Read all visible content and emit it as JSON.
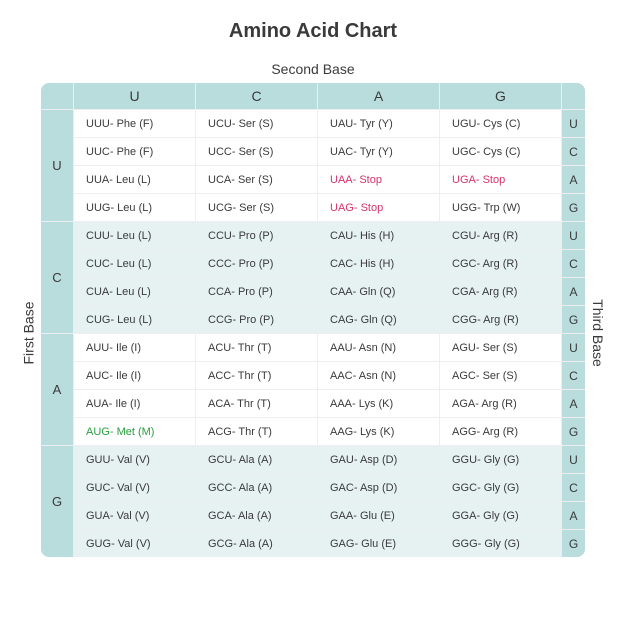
{
  "title": "Amino Acid Chart",
  "labels": {
    "first_base": "First Base",
    "second_base": "Second Base",
    "third_base": "Third Base"
  },
  "colors": {
    "header_bg": "#b9dcdc",
    "cell_bg_light": "#ffffff",
    "cell_bg_tint": "#e6f2f2",
    "text": "#3a3a3a",
    "stop": "#d6336c",
    "start": "#2a9d3f",
    "border": "#eeeeee"
  },
  "second_base_headers": [
    "U",
    "C",
    "A",
    "G"
  ],
  "first_base_headers": [
    "U",
    "C",
    "A",
    "G"
  ],
  "third_base_cycle": [
    "U",
    "C",
    "A",
    "G"
  ],
  "table": [
    [
      {
        "codon": "UUU",
        "rest": " - Phe (F)"
      },
      {
        "codon": "UCU",
        "rest": " - Ser (S)"
      },
      {
        "codon": "UAU",
        "rest": " - Tyr (Y)"
      },
      {
        "codon": "UGU",
        "rest": " - Cys (C)"
      }
    ],
    [
      {
        "codon": "UUC",
        "rest": " - Phe (F)"
      },
      {
        "codon": "UCC",
        "rest": " - Ser (S)"
      },
      {
        "codon": "UAC",
        "rest": " - Tyr (Y)"
      },
      {
        "codon": "UGC",
        "rest": " - Cys (C)"
      }
    ],
    [
      {
        "codon": "UUA",
        "rest": " - Leu (L)"
      },
      {
        "codon": "UCA",
        "rest": " - Ser (S)"
      },
      {
        "codon": "UAA",
        "rest": " - Stop",
        "color": "stop"
      },
      {
        "codon": "UGA",
        "rest": " - Stop",
        "color": "stop"
      }
    ],
    [
      {
        "codon": "UUG",
        "rest": " - Leu (L)"
      },
      {
        "codon": "UCG",
        "rest": " - Ser (S)"
      },
      {
        "codon": "UAG",
        "rest": " - Stop",
        "color": "stop"
      },
      {
        "codon": "UGG",
        "rest": " - Trp (W)"
      }
    ],
    [
      {
        "codon": "CUU",
        "rest": " - Leu (L)"
      },
      {
        "codon": "CCU",
        "rest": " - Pro (P)"
      },
      {
        "codon": "CAU",
        "rest": " - His (H)"
      },
      {
        "codon": "CGU",
        "rest": " - Arg (R)"
      }
    ],
    [
      {
        "codon": "CUC",
        "rest": " - Leu (L)"
      },
      {
        "codon": "CCC",
        "rest": " - Pro (P)"
      },
      {
        "codon": "CAC",
        "rest": " - His (H)"
      },
      {
        "codon": "CGC",
        "rest": " - Arg (R)"
      }
    ],
    [
      {
        "codon": "CUA",
        "rest": " - Leu (L)"
      },
      {
        "codon": "CCA",
        "rest": " - Pro (P)"
      },
      {
        "codon": "CAA",
        "rest": " - Gln (Q)"
      },
      {
        "codon": "CGA",
        "rest": " - Arg (R)"
      }
    ],
    [
      {
        "codon": "CUG",
        "rest": " - Leu (L)"
      },
      {
        "codon": "CCG",
        "rest": " - Pro (P)"
      },
      {
        "codon": "CAG",
        "rest": " - Gln (Q)"
      },
      {
        "codon": "CGG",
        "rest": " - Arg (R)"
      }
    ],
    [
      {
        "codon": "AUU",
        "rest": " - Ile (I)"
      },
      {
        "codon": "ACU",
        "rest": " - Thr (T)"
      },
      {
        "codon": "AAU",
        "rest": " - Asn (N)"
      },
      {
        "codon": "AGU",
        "rest": " - Ser (S)"
      }
    ],
    [
      {
        "codon": "AUC",
        "rest": " - Ile (I)"
      },
      {
        "codon": "ACC",
        "rest": " - Thr (T)"
      },
      {
        "codon": "AAC",
        "rest": " - Asn (N)"
      },
      {
        "codon": "AGC",
        "rest": " - Ser (S)"
      }
    ],
    [
      {
        "codon": "AUA",
        "rest": " - Ile (I)"
      },
      {
        "codon": "ACA",
        "rest": " - Thr (T)"
      },
      {
        "codon": "AAA",
        "rest": " - Lys (K)"
      },
      {
        "codon": "AGA",
        "rest": " - Arg (R)"
      }
    ],
    [
      {
        "codon": "AUG",
        "rest": " - Met (M)",
        "color": "start"
      },
      {
        "codon": "ACG",
        "rest": " - Thr (T)"
      },
      {
        "codon": "AAG",
        "rest": " - Lys (K)"
      },
      {
        "codon": "AGG",
        "rest": " - Arg (R)"
      }
    ],
    [
      {
        "codon": "GUU",
        "rest": " - Val (V)"
      },
      {
        "codon": "GCU",
        "rest": " - Ala (A)"
      },
      {
        "codon": "GAU",
        "rest": " - Asp (D)"
      },
      {
        "codon": "GGU",
        "rest": " - Gly (G)"
      }
    ],
    [
      {
        "codon": "GUC",
        "rest": " - Val (V)"
      },
      {
        "codon": "GCC",
        "rest": " - Ala (A)"
      },
      {
        "codon": "GAC",
        "rest": " - Asp (D)"
      },
      {
        "codon": "GGC",
        "rest": " - Gly (G)"
      }
    ],
    [
      {
        "codon": "GUA",
        "rest": " - Val (V)"
      },
      {
        "codon": "GCA",
        "rest": " - Ala (A)"
      },
      {
        "codon": "GAA",
        "rest": " - Glu (E)"
      },
      {
        "codon": "GGA",
        "rest": " - Gly (G)"
      }
    ],
    [
      {
        "codon": "GUG",
        "rest": " - Val (V)"
      },
      {
        "codon": "GCG",
        "rest": " - Ala (A)"
      },
      {
        "codon": "GAG",
        "rest": " - Glu (E)"
      },
      {
        "codon": "GGG",
        "rest": " - Gly (G)"
      }
    ]
  ],
  "row_tint_groups": [
    0,
    1,
    0,
    1
  ]
}
